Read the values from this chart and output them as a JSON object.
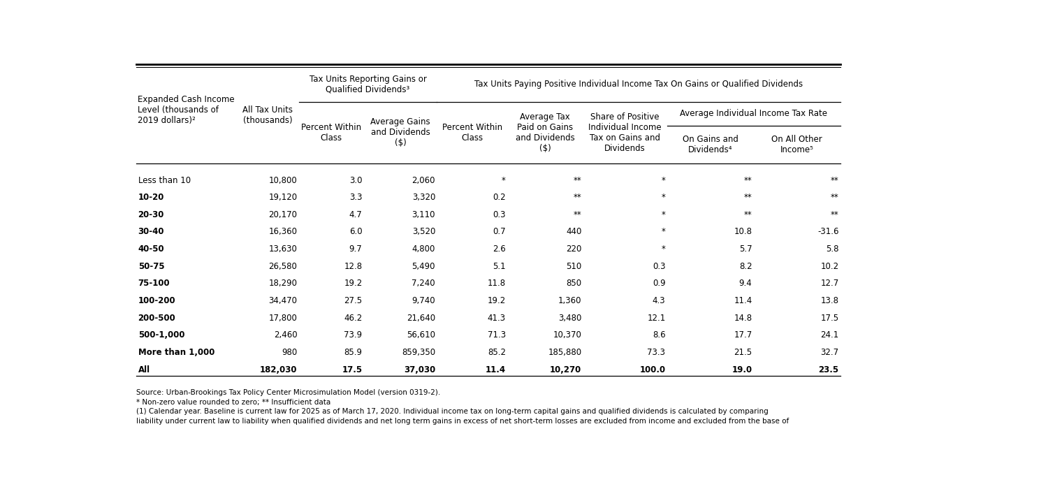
{
  "header_col1": "Expanded Cash Income\nLevel (thousands of\n2019 dollars)²",
  "header_col2": "All Tax Units\n(thousands)",
  "header_group1": "Tax Units Reporting Gains or\nQualified Dividends³",
  "header_group2": "Tax Units Paying Positive Individual Income Tax On Gains or Qualified Dividends",
  "subheader_g1_c1": "Percent Within\nClass",
  "subheader_g1_c2": "Average Gains\nand Dividends\n($)",
  "subheader_g2_c1": "Percent Within\nClass",
  "subheader_g2_c2": "Average Tax\nPaid on Gains\nand Dividends\n($)",
  "subheader_g2_c3": "Share of Positive\nIndividual Income\nTax on Gains and\nDividends",
  "subheader_avgrate": "Average Individual Income Tax Rate",
  "subheader_avgrate_c1": "On Gains and\nDividends⁴",
  "subheader_avgrate_c2": "On All Other\nIncome⁵",
  "rows": [
    [
      "Less than 10",
      "10,800",
      "3.0",
      "2,060",
      "*",
      "**",
      "*",
      "**",
      "**"
    ],
    [
      "10-20",
      "19,120",
      "3.3",
      "3,320",
      "0.2",
      "**",
      "*",
      "**",
      "**"
    ],
    [
      "20-30",
      "20,170",
      "4.7",
      "3,110",
      "0.3",
      "**",
      "*",
      "**",
      "**"
    ],
    [
      "30-40",
      "16,360",
      "6.0",
      "3,520",
      "0.7",
      "440",
      "*",
      "10.8",
      "-31.6"
    ],
    [
      "40-50",
      "13,630",
      "9.7",
      "4,800",
      "2.6",
      "220",
      "*",
      "5.7",
      "5.8"
    ],
    [
      "50-75",
      "26,580",
      "12.8",
      "5,490",
      "5.1",
      "510",
      "0.3",
      "8.2",
      "10.2"
    ],
    [
      "75-100",
      "18,290",
      "19.2",
      "7,240",
      "11.8",
      "850",
      "0.9",
      "9.4",
      "12.7"
    ],
    [
      "100-200",
      "34,470",
      "27.5",
      "9,740",
      "19.2",
      "1,360",
      "4.3",
      "11.4",
      "13.8"
    ],
    [
      "200-500",
      "17,800",
      "46.2",
      "21,640",
      "41.3",
      "3,480",
      "12.1",
      "14.8",
      "17.5"
    ],
    [
      "500-1,000",
      "2,460",
      "73.9",
      "56,610",
      "71.3",
      "10,370",
      "8.6",
      "17.7",
      "24.1"
    ],
    [
      "More than 1,000",
      "980",
      "85.9",
      "859,350",
      "85.2",
      "185,880",
      "73.3",
      "21.5",
      "32.7"
    ],
    [
      "All",
      "182,030",
      "17.5",
      "37,030",
      "11.4",
      "10,270",
      "100.0",
      "19.0",
      "23.5"
    ]
  ],
  "row_bold": [
    false,
    true,
    true,
    true,
    true,
    true,
    true,
    true,
    true,
    true,
    true,
    true
  ],
  "footnotes": [
    "Source: Urban-Brookings Tax Policy Center Microsimulation Model (version 0319-2).",
    "* Non-zero value rounded to zero; ** Insufficient data",
    "(1) Calendar year. Baseline is current law for 2025 as of March 17, 2020. Individual income tax on long-term capital gains and qualified dividends is calculated by comparing",
    "liability under current law to liability when qualified dividends and net long term gains in excess of net short-term losses are excluded from income and excluded from the base of"
  ],
  "bg_color": "#ffffff"
}
